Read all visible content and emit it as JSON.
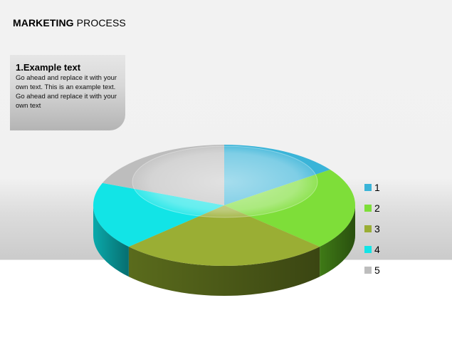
{
  "slide": {
    "title_bold": "MARKETING",
    "title_rest": " PROCESS"
  },
  "callout": {
    "heading": "1.Example text",
    "body": "Go ahead and replace it with your own text. This is an example text. Go ahead and replace it with your own text"
  },
  "chart_data": {
    "type": "pie",
    "style": "3d-exploded-disc",
    "title": "",
    "categories": [
      "1",
      "2",
      "3",
      "4",
      "5"
    ],
    "values": [
      15,
      22,
      26,
      18,
      19
    ],
    "colors": [
      "#3ab4d8",
      "#7ede39",
      "#9aae34",
      "#12e4e6",
      "#bdbdbd"
    ],
    "side_colors": [
      "#1f7b9a",
      "#3f7a16",
      "#5a6b1c",
      "#0aa9ab",
      "#8f8f8f"
    ],
    "start_angle_deg": -90,
    "direction": "clockwise",
    "legend_position": "right"
  }
}
